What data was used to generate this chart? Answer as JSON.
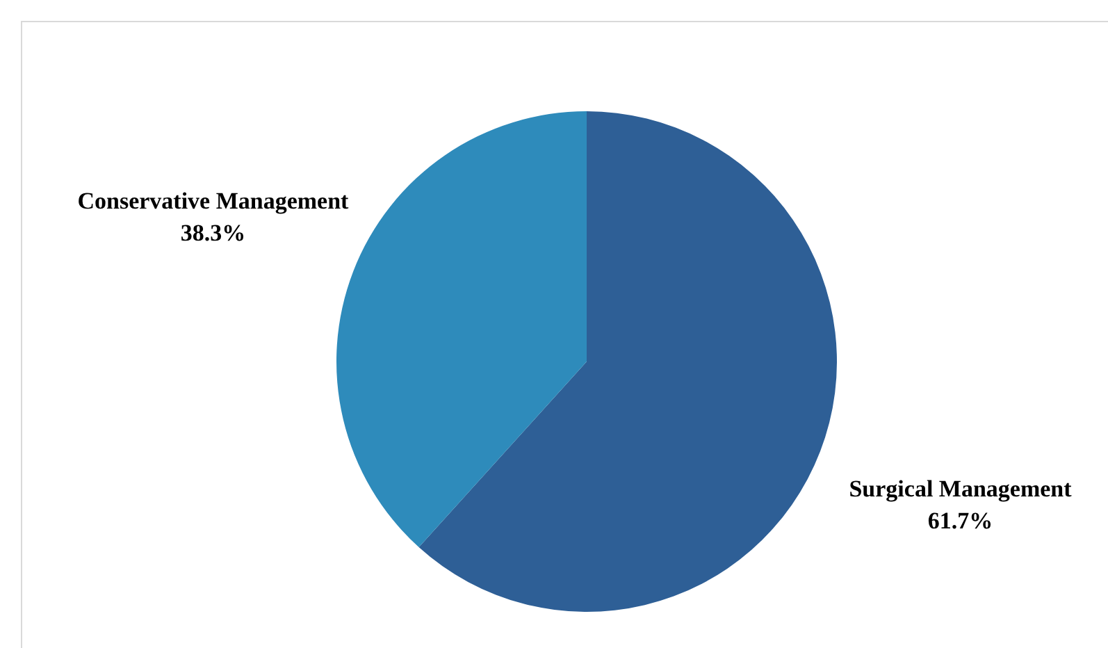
{
  "chart_data": {
    "type": "pie",
    "categories": [
      "Surgical Management",
      "Conservative Management"
    ],
    "values": [
      61.7,
      38.3
    ],
    "colors": [
      "#2e5f96",
      "#2e8bbb"
    ],
    "value_labels": [
      "61.7%",
      "38.3%"
    ],
    "legend": false
  }
}
